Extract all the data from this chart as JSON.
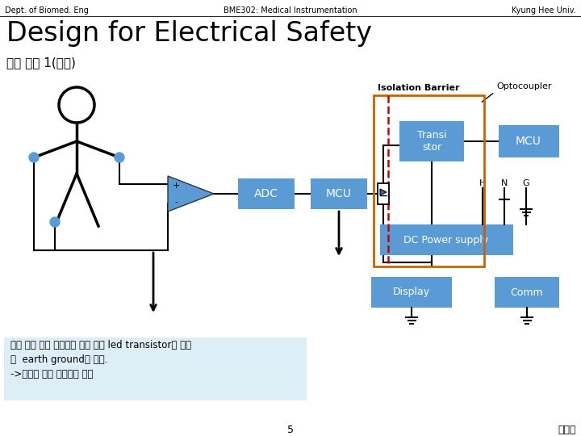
{
  "header_left": "Dept. of Biomed. Eng",
  "header_center": "BME302: Medical Instrumentation",
  "header_right": "Kyung Hee Univ.",
  "title": "Design for Electrical Safety",
  "subtitle": "설계 방법 1(안전)",
  "isolation_label": "Isolation Barrier",
  "optocoupler_label": "Optocoupler",
  "box_adc": "ADC",
  "box_mcu_left": "MCU",
  "box_transistor": "Transi\nstor",
  "box_mcu_right": "MCU",
  "box_dcpower": "DC Power supply",
  "box_display": "Display",
  "box_comm": "Comm",
  "hng_labels": [
    "H",
    "N",
    "G"
  ],
  "footer_number": "5",
  "footer_right": "원지혜",
  "note_text": "기준 전위 점을 기준으로 하던 것이 led transistor를 통하\n여  earth ground로 바뀜.\n->신호를 빛을 이용하여 넘김",
  "box_color": "#5B9BD5",
  "barrier_color_rect": "#C86400",
  "barrier_line_color": "#C80000",
  "note_bg_color": "#DDEEF6",
  "bg_color": "#FFFFFF"
}
